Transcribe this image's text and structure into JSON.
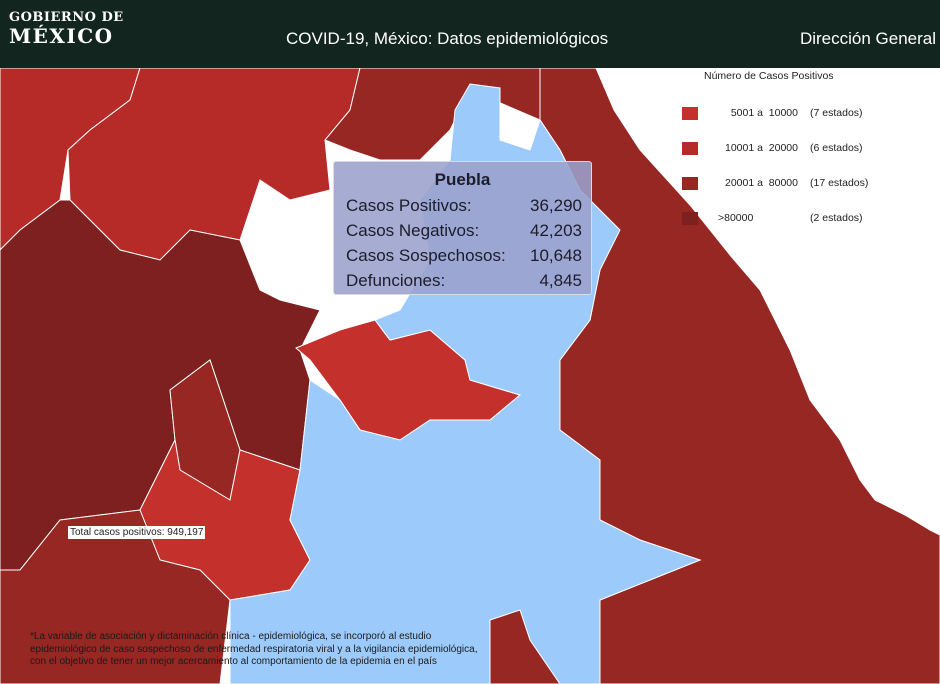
{
  "header": {
    "logo_line1": "GOBIERNO DE",
    "logo_line2": "MÉXICO",
    "title": "COVID-19, México: Datos epidemiológicos",
    "right_text": "Dirección General"
  },
  "legend": {
    "title": "Número de Casos Positivos",
    "items": [
      {
        "range": "5001 a  10000",
        "count": "(7 estados)",
        "color": "#c4302b"
      },
      {
        "range": "10001 a  20000",
        "count": "(6 estados)",
        "color": "#b62b27"
      },
      {
        "range": "20001 a  80000",
        "count": "(17 estados)",
        "color": "#962723"
      },
      {
        "range": ">80000",
        "count": "(2 estados)",
        "color": "#7d201f"
      }
    ]
  },
  "tooltip": {
    "state": "Puebla",
    "rows": [
      {
        "label": "Casos Positivos:",
        "value": "36,290"
      },
      {
        "label": "Casos Negativos:",
        "value": "42,203"
      },
      {
        "label": "Casos Sospechosos:",
        "value": "10,648"
      },
      {
        "label": "Defunciones:",
        "value": "4,845"
      }
    ]
  },
  "total_label": "Total casos positivos: 949,197",
  "footnote": [
    "*La variable de asociación y dictaminación clínica - epidemiológica, se incorporó al estudio",
    "epidemiológico de caso sospechoso de enfermedad respiratoria viral y a la vigilancia epidemiológica,",
    "con el objetivo de tener un mejor acercamiento al comportamiento de la epidemia en el país"
  ],
  "colors": {
    "header_bg": "#12251f",
    "highlight_state": "#9ccbfb",
    "sea": "#ffffff",
    "border": "#ffffff"
  }
}
